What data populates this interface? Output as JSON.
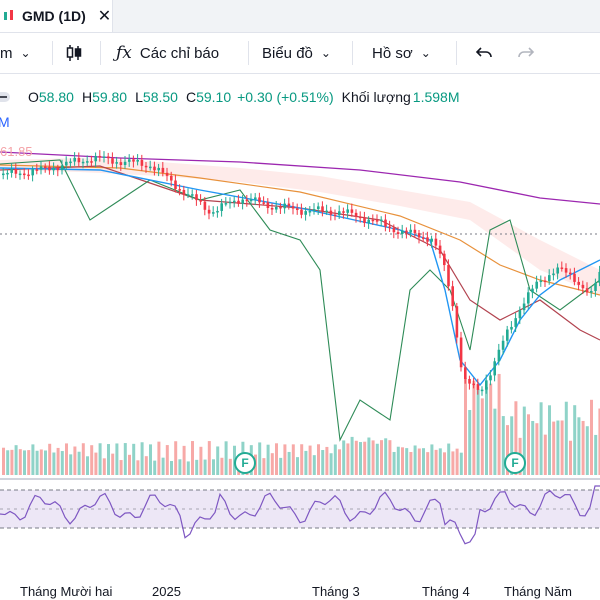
{
  "tab": {
    "title": "GMD (1D)",
    "close_label": "✕"
  },
  "toolbar": {
    "interval_label": "m",
    "indicators_label": "Các chỉ báo",
    "chart_type_label": "Biểu đồ",
    "profile_label": "Hồ sơ"
  },
  "legend": {
    "o_key": "O",
    "o_val": "58.80",
    "h_key": "H",
    "h_val": "59.80",
    "l_key": "L",
    "l_val": "58.50",
    "c_key": "C",
    "c_val": "59.10",
    "change": "+0.30 (+0.51%)",
    "volume_key": "Khối lượng",
    "volume_val": "1.598M",
    "m_label": "M"
  },
  "price_label": "61.85",
  "flags": [
    "F",
    "F"
  ],
  "xaxis": {
    "labels": [
      "Tháng Mười hai",
      "2025",
      "Tháng 3",
      "Tháng 4",
      "Tháng Năm"
    ]
  },
  "colors": {
    "up": "#22ab94",
    "down": "#f23645",
    "accent": "#131722"
  }
}
